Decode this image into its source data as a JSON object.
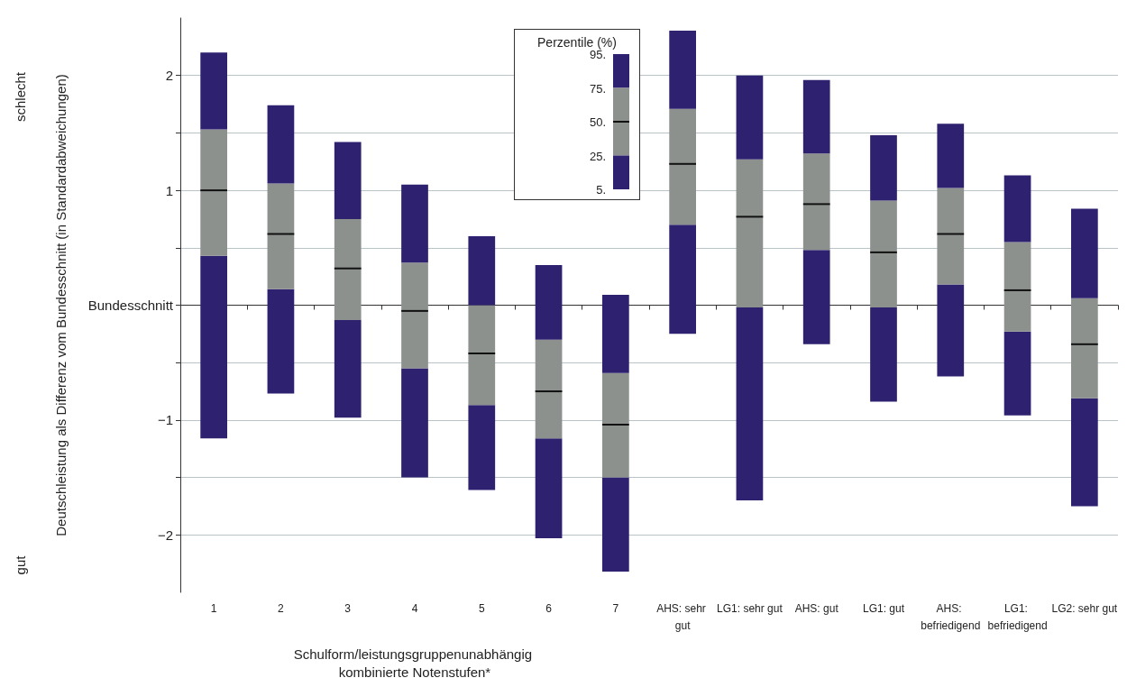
{
  "chart_data": {
    "type": "box",
    "xlabel": "Schulform/leistungsgruppenunabhängig kombinierte Notenstufen*",
    "ylabel": "Deutschleistung als Differenz vom Bundesschnitt (in Standardabweichungen)",
    "legend_title": "Perzentile (%)",
    "annotations": [
      "schlecht",
      "gut",
      "5.",
      "25.",
      "50.",
      "75.",
      "95."
    ],
    "categories": [
      "1",
      "2",
      "3",
      "4",
      "5",
      "6",
      "7",
      "AHS: sehr gut",
      "LG1: sehr gut",
      "AHS: gut",
      "LG1: gut",
      "AHS: befriedigend",
      "LG1: befriedigend",
      "LG2: sehr gut"
    ],
    "series": [
      {
        "color": "#8c918e",
        "boxes": [
          {
            "low": -1.16,
            "q1": 0.43,
            "median": 1.0,
            "q3": 1.53,
            "high": 2.2
          },
          {
            "low": -0.77,
            "q1": 0.14,
            "median": 0.62,
            "q3": 1.06,
            "high": 1.74
          },
          {
            "low": -0.98,
            "q1": -0.13,
            "median": 0.32,
            "q3": 0.75,
            "high": 1.42
          },
          {
            "low": -1.5,
            "q1": -0.55,
            "median": -0.05,
            "q3": 0.37,
            "high": 1.05
          },
          {
            "low": -1.61,
            "q1": -0.87,
            "median": -0.42,
            "q3": 0.0,
            "high": 0.6
          },
          {
            "low": -2.03,
            "q1": -1.16,
            "median": -0.75,
            "q3": -0.3,
            "high": 0.35
          },
          {
            "low": -2.32,
            "q1": -1.5,
            "median": -1.04,
            "q3": -0.59,
            "high": 0.09
          },
          {
            "low": -0.25,
            "q1": 0.7,
            "median": 1.23,
            "q3": 1.71,
            "high": 2.39
          },
          {
            "low": -1.7,
            "q1": -0.02,
            "median": 0.77,
            "q3": 1.27,
            "high": 2.0
          },
          {
            "low": -0.34,
            "q1": 0.48,
            "median": 0.88,
            "q3": 1.32,
            "high": 1.96
          },
          {
            "low": -0.84,
            "q1": -0.02,
            "median": 0.46,
            "q3": 0.91,
            "high": 1.48
          },
          {
            "low": -0.62,
            "q1": 0.18,
            "median": 0.62,
            "q3": 1.02,
            "high": 1.58
          },
          {
            "low": -0.96,
            "q1": -0.23,
            "median": 0.13,
            "q3": 0.55,
            "high": 1.13
          },
          {
            "low": -1.75,
            "q1": -0.81,
            "median": -0.34,
            "q3": 0.06,
            "high": 0.84
          }
        ]
      }
    ],
    "ylim": [
      -2.5,
      2.5
    ],
    "yticks": [
      2,
      {
        "value": 1.5,
        "label": null
      },
      1,
      {
        "value": 0.5,
        "label": null
      },
      {
        "value": 0,
        "label": "Bundesschnitt"
      },
      {
        "value": -0.5,
        "label": null
      },
      -1,
      {
        "value": -1.5,
        "label": null
      },
      -2
    ],
    "grid": "y"
  }
}
